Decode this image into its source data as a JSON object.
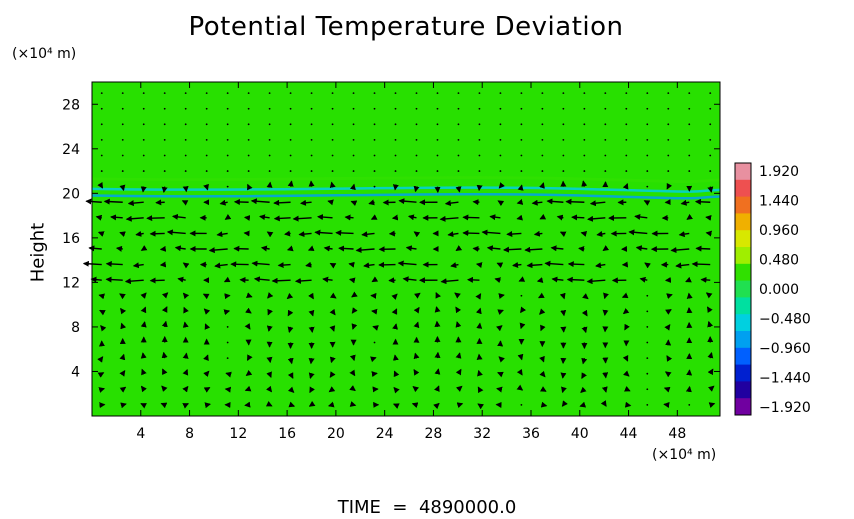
{
  "chart_data": {
    "type": "heatmap",
    "title": "Potential Temperature Deviation",
    "ylabel": "Height",
    "y_unit": "(×10⁴ m)",
    "x_unit": "(×10⁴ m)",
    "x_ticks": [
      4,
      8,
      12,
      16,
      20,
      24,
      28,
      32,
      36,
      40,
      44,
      48
    ],
    "y_ticks": [
      4,
      8,
      12,
      16,
      20,
      24,
      28
    ],
    "xlim": [
      0,
      51.5
    ],
    "ylim": [
      0,
      30
    ],
    "colorbar": {
      "ticks": [
        "1.920",
        "1.440",
        "0.960",
        "0.480",
        "0.000",
        "−0.480",
        "−0.960",
        "−1.440",
        "−1.920"
      ],
      "range": [
        -1.92,
        1.92
      ],
      "colors": [
        "#e890a0",
        "#ee5050",
        "#f07020",
        "#f0b000",
        "#d8e800",
        "#a0ee00",
        "#30e000",
        "#20e050",
        "#00e0a0",
        "#00d0e0",
        "#00a0f0",
        "#0060ff",
        "#0020d0",
        "#2000a0",
        "#7000a0"
      ]
    },
    "background_color": "#28e000",
    "bands": [
      {
        "y": 21.3,
        "value": 0.25
      },
      {
        "y": 20.4,
        "value": -0.5
      },
      {
        "y": 19.8,
        "value": -0.8
      }
    ],
    "wind_vectors_description_free": true,
    "time_label": "TIME",
    "time_value": "4890000.0"
  }
}
